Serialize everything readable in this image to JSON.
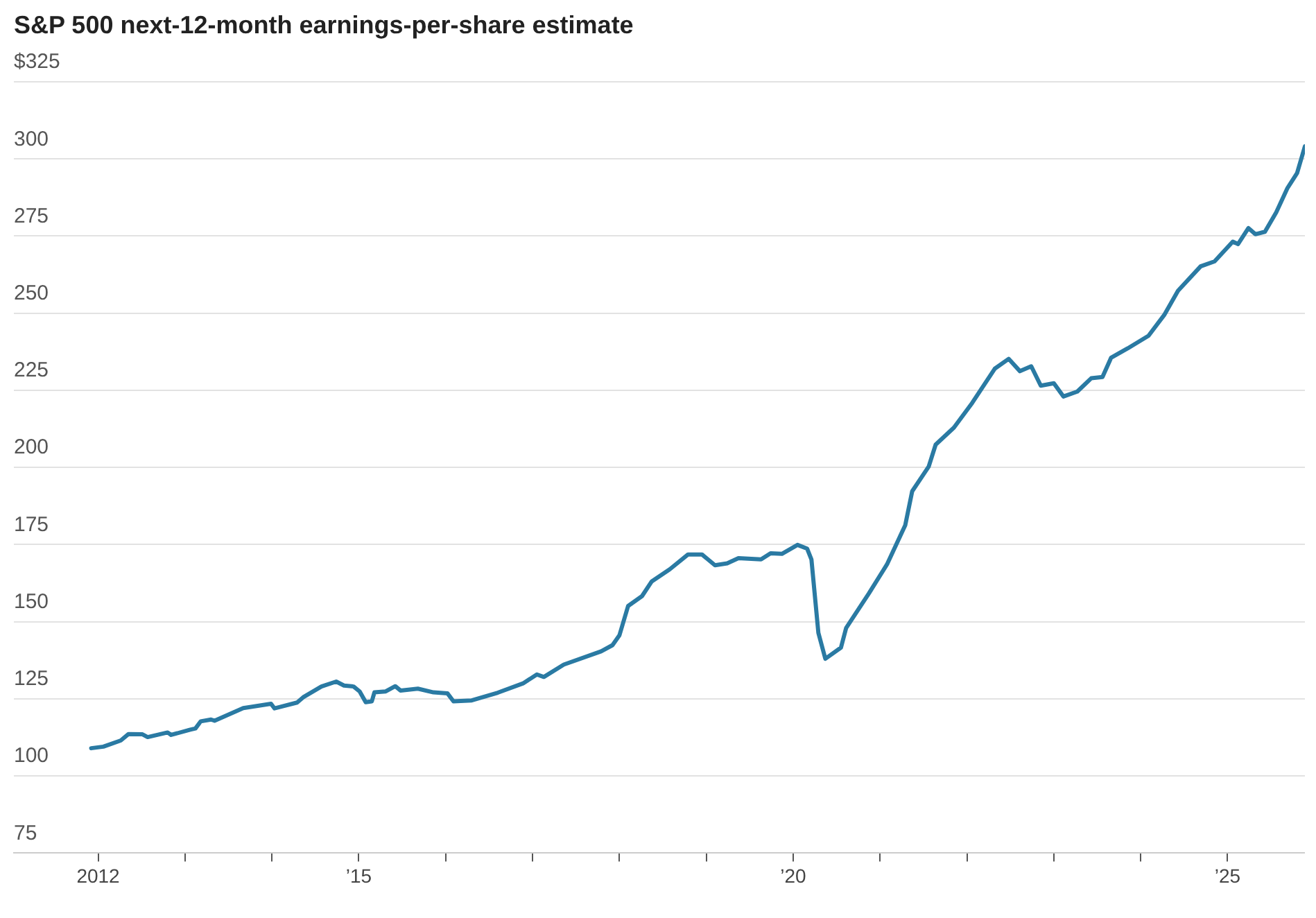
{
  "chart_data": {
    "type": "line",
    "title": "S&P 500 next-12-month earnings-per-share estimate",
    "x": [
      2011.92,
      2012.06,
      2012.26,
      2012.35,
      2012.51,
      2012.57,
      2012.8,
      2012.84,
      2013.06,
      2013.12,
      2013.18,
      2013.3,
      2013.34,
      2013.67,
      2013.99,
      2014.03,
      2014.29,
      2014.36,
      2014.57,
      2014.74,
      2014.83,
      2014.94,
      2015.01,
      2015.08,
      2015.15,
      2015.18,
      2015.31,
      2015.42,
      2015.48,
      2015.68,
      2015.86,
      2016.02,
      2016.09,
      2016.3,
      2016.6,
      2016.89,
      2017.05,
      2017.13,
      2017.36,
      2017.79,
      2017.92,
      2018.0,
      2018.1,
      2018.26,
      2018.37,
      2018.58,
      2018.79,
      2018.95,
      2019.1,
      2019.24,
      2019.37,
      2019.63,
      2019.74,
      2019.87,
      2020.05,
      2020.16,
      2020.21,
      2020.29,
      2020.37,
      2020.55,
      2020.61,
      2020.87,
      2021.08,
      2021.29,
      2021.37,
      2021.56,
      2021.64,
      2021.85,
      2022.06,
      2022.32,
      2022.48,
      2022.61,
      2022.74,
      2022.85,
      2023.0,
      2023.11,
      2023.27,
      2023.43,
      2023.56,
      2023.66,
      2023.85,
      2024.09,
      2024.27,
      2024.43,
      2024.69,
      2024.85,
      2025.06,
      2025.12,
      2025.24,
      2025.32,
      2025.43,
      2025.56,
      2025.69,
      2025.8,
      2025.89
    ],
    "series": [
      {
        "color": "#2a7aa3",
        "values": [
          109.0,
          109.5,
          111.5,
          113.6,
          113.5,
          112.6,
          114.1,
          113.3,
          115.0,
          115.4,
          117.7,
          118.3,
          117.9,
          122.0,
          123.4,
          121.9,
          123.8,
          125.5,
          129.0,
          130.6,
          129.3,
          129.0,
          127.4,
          123.9,
          124.2,
          127.1,
          127.4,
          129.1,
          127.7,
          128.3,
          127.1,
          126.8,
          124.2,
          124.5,
          127,
          130,
          132.9,
          132.1,
          136.1,
          140.4,
          142.4,
          145.6,
          155.1,
          158.3,
          163.0,
          167.0,
          171.8,
          171.8,
          168.3,
          168.9,
          170.6,
          170.2,
          172.2,
          172.0,
          174.9,
          173.7,
          170.2,
          146.4,
          138.0,
          141.6,
          148.0,
          159.1,
          168.6,
          181.3,
          192.3,
          200.3,
          207.4,
          212.9,
          220.9,
          232.0,
          235.2,
          231.2,
          232.8,
          226.5,
          227.3,
          223.0,
          224.6,
          228.9,
          229.3,
          235.6,
          238.6,
          242.7,
          249.4,
          257.3,
          265.2,
          266.8,
          273.2,
          272.4,
          277.6,
          275.6,
          276.4,
          282.7,
          290.6,
          295.4,
          304.1
        ]
      }
    ],
    "xlim": [
      2011.03,
      2025.89
    ],
    "xticks": [
      2012,
      {
        "value": 2013,
        "label": null
      },
      {
        "value": 2014,
        "label": null
      },
      {
        "value": 2015,
        "label": "’15"
      },
      {
        "value": 2016,
        "label": null
      },
      {
        "value": 2017,
        "label": null
      },
      {
        "value": 2018,
        "label": null
      },
      {
        "value": 2019,
        "label": null
      },
      {
        "value": 2020,
        "label": "’20"
      },
      {
        "value": 2021,
        "label": null
      },
      {
        "value": 2022,
        "label": null
      },
      {
        "value": 2023,
        "label": null
      },
      {
        "value": 2024,
        "label": null
      },
      {
        "value": 2025,
        "label": "’25"
      }
    ],
    "ylim": [
      75,
      325
    ],
    "yticks": [
      75,
      100,
      125,
      150,
      175,
      200,
      225,
      250,
      275,
      300,
      {
        "value": 325,
        "label": "$325"
      }
    ],
    "grid": "y",
    "legend": false,
    "marker": "none",
    "line_style": "solid"
  }
}
